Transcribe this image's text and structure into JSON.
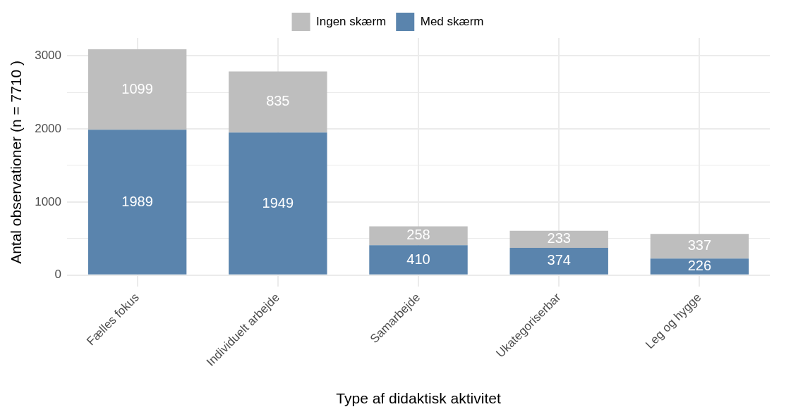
{
  "chart_data": {
    "type": "bar",
    "stacked": true,
    "xlabel": "Type af didaktisk aktivitet",
    "ylabel": "Antal observationer (n = 7710 )",
    "categories": [
      "Fælles fokus",
      "Individuelt arbejde",
      "Samarbejde",
      "Ukategoriserbar",
      "Leg og hygge"
    ],
    "series": [
      {
        "name": "Med skærm",
        "color": "#5a84ad",
        "values": [
          1989,
          1949,
          410,
          374,
          226
        ]
      },
      {
        "name": "Ingen skærm",
        "color": "#bebebe",
        "values": [
          1099,
          835,
          258,
          233,
          337
        ]
      }
    ],
    "ylim": [
      -154,
      3242
    ],
    "yticks": [
      0,
      {
        "value": 500,
        "label": null
      },
      1000,
      {
        "value": 1500,
        "label": null
      },
      2000,
      {
        "value": 2500,
        "label": null
      },
      3000
    ],
    "grid": true,
    "legend": "top",
    "data_labels": true
  }
}
